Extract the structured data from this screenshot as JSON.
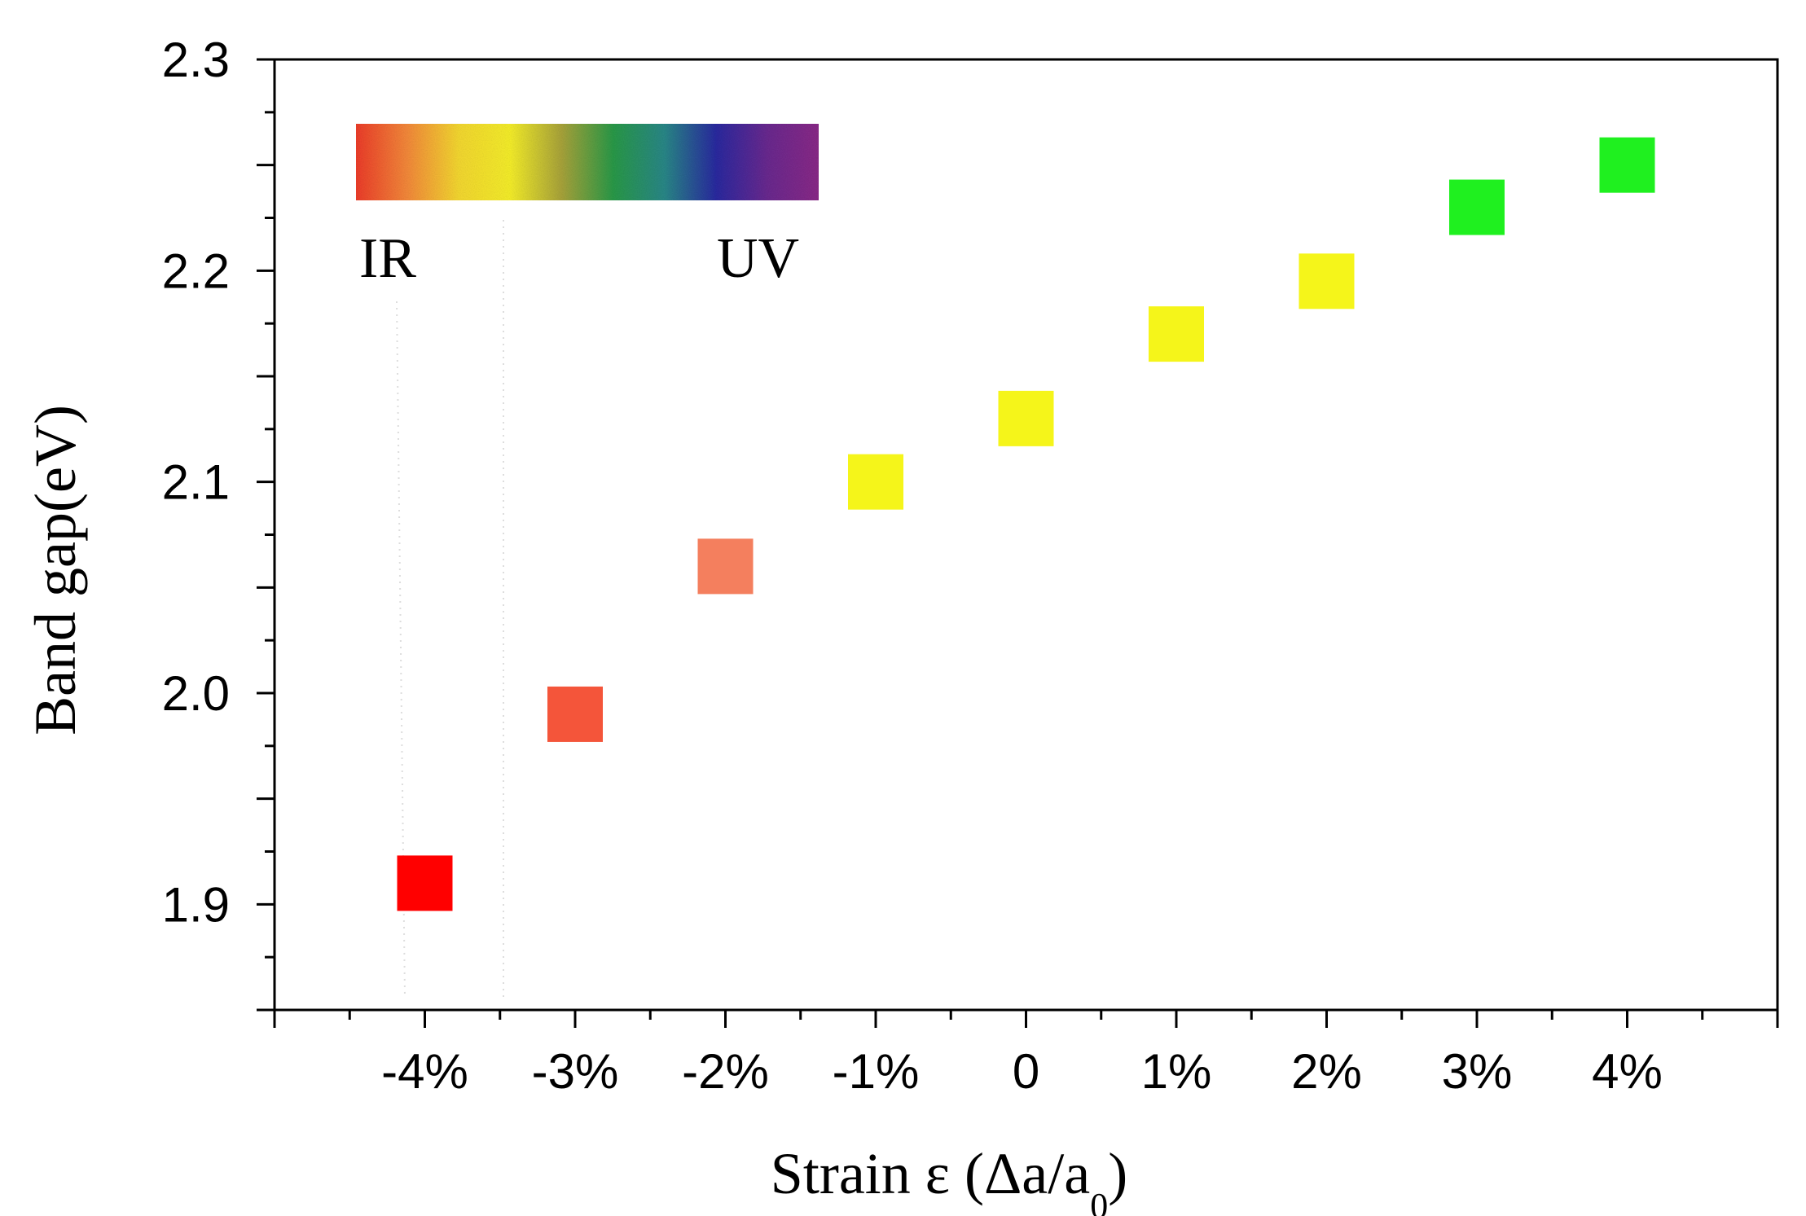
{
  "chart_data": {
    "type": "scatter",
    "title": "",
    "xlabel_main": "Strain ε (Δa/a",
    "xlabel_sub": "0",
    "xlabel_close": ")",
    "ylabel": "Band gap(eV)",
    "xlim": [
      -5,
      5
    ],
    "ylim": [
      1.85,
      2.3
    ],
    "x_ticks": [
      -4,
      -3,
      -2,
      -1,
      0,
      1,
      2,
      3,
      4
    ],
    "x_tick_labels": [
      "-4%",
      "-3%",
      "-2%",
      "-1%",
      "0",
      "1%",
      "2%",
      "3%",
      "4%"
    ],
    "y_ticks": [
      1.9,
      2.0,
      2.1,
      2.2,
      2.3
    ],
    "y_tick_labels": [
      "1.9",
      "2.0",
      "2.1",
      "2.2",
      "2.3"
    ],
    "grid": false,
    "series": [
      {
        "name": "Band gap",
        "x": [
          -4,
          -3,
          -2,
          -1,
          0,
          1,
          2,
          3,
          4
        ],
        "y": [
          1.91,
          1.99,
          2.06,
          2.1,
          2.13,
          2.17,
          2.195,
          2.23,
          2.25
        ],
        "colors": [
          "#ff0000",
          "#f4553a",
          "#f47f5e",
          "#f5f51a",
          "#f5f51a",
          "#f5f51a",
          "#f5f51a",
          "#1ff01f",
          "#1ff01f"
        ]
      }
    ],
    "legend": {
      "type": "spectrum-bar",
      "position": "top-left",
      "left_label": "IR",
      "right_label": "UV",
      "gradient": [
        "#ee3d2a",
        "#f58a3a",
        "#f5d930",
        "#f6ef2a",
        "#a9a43a",
        "#2a9a48",
        "#2a8888",
        "#2a2aa0",
        "#6a2a90",
        "#8a2a88"
      ]
    }
  }
}
